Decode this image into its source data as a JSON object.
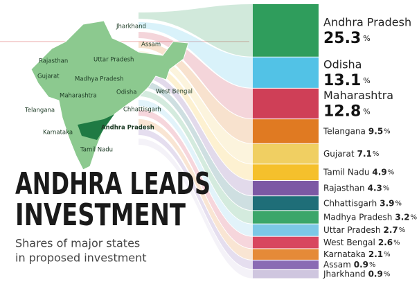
{
  "chart_data": {
    "type": "stacked-column",
    "title": [
      "ANDHRA LEADS",
      "INVESTMENT"
    ],
    "subtitle": [
      "Shares of major states",
      "in proposed investment"
    ],
    "unit": "%",
    "categories": [
      "Andhra Pradesh",
      "Odisha",
      "Maharashtra",
      "Telangana",
      "Gujarat",
      "Tamil Nadu",
      "Rajasthan",
      "Chhattisgarh",
      "Madhya Pradesh",
      "Uttar Pradesh",
      "West Bengal",
      "Karnataka",
      "Assam",
      "Jharkhand"
    ],
    "values": [
      25.3,
      13.1,
      12.8,
      9.5,
      7.1,
      4.9,
      4.3,
      3.9,
      3.2,
      2.7,
      2.6,
      2.1,
      0.9,
      0.9
    ],
    "colors": [
      "#2f9d5c",
      "#52c2e6",
      "#cf3f57",
      "#e07a22",
      "#f0cf62",
      "#f5c02c",
      "#7c58a4",
      "#1f6e78",
      "#3ba66a",
      "#7cc8e6",
      "#d8465f",
      "#e58a38",
      "#8a6bb4",
      "#cfc6df"
    ],
    "map_labels": [
      "Jharkhand",
      "Assam",
      "Rajasthan",
      "Uttar Pradesh",
      "Gujarat",
      "Madhya Pradesh",
      "Maharashtra",
      "Odisha",
      "West Bengal",
      "Telangana",
      "Chhattisgarh",
      "Andhra Pradesh",
      "Karnataka",
      "Tamil Nadu"
    ]
  }
}
